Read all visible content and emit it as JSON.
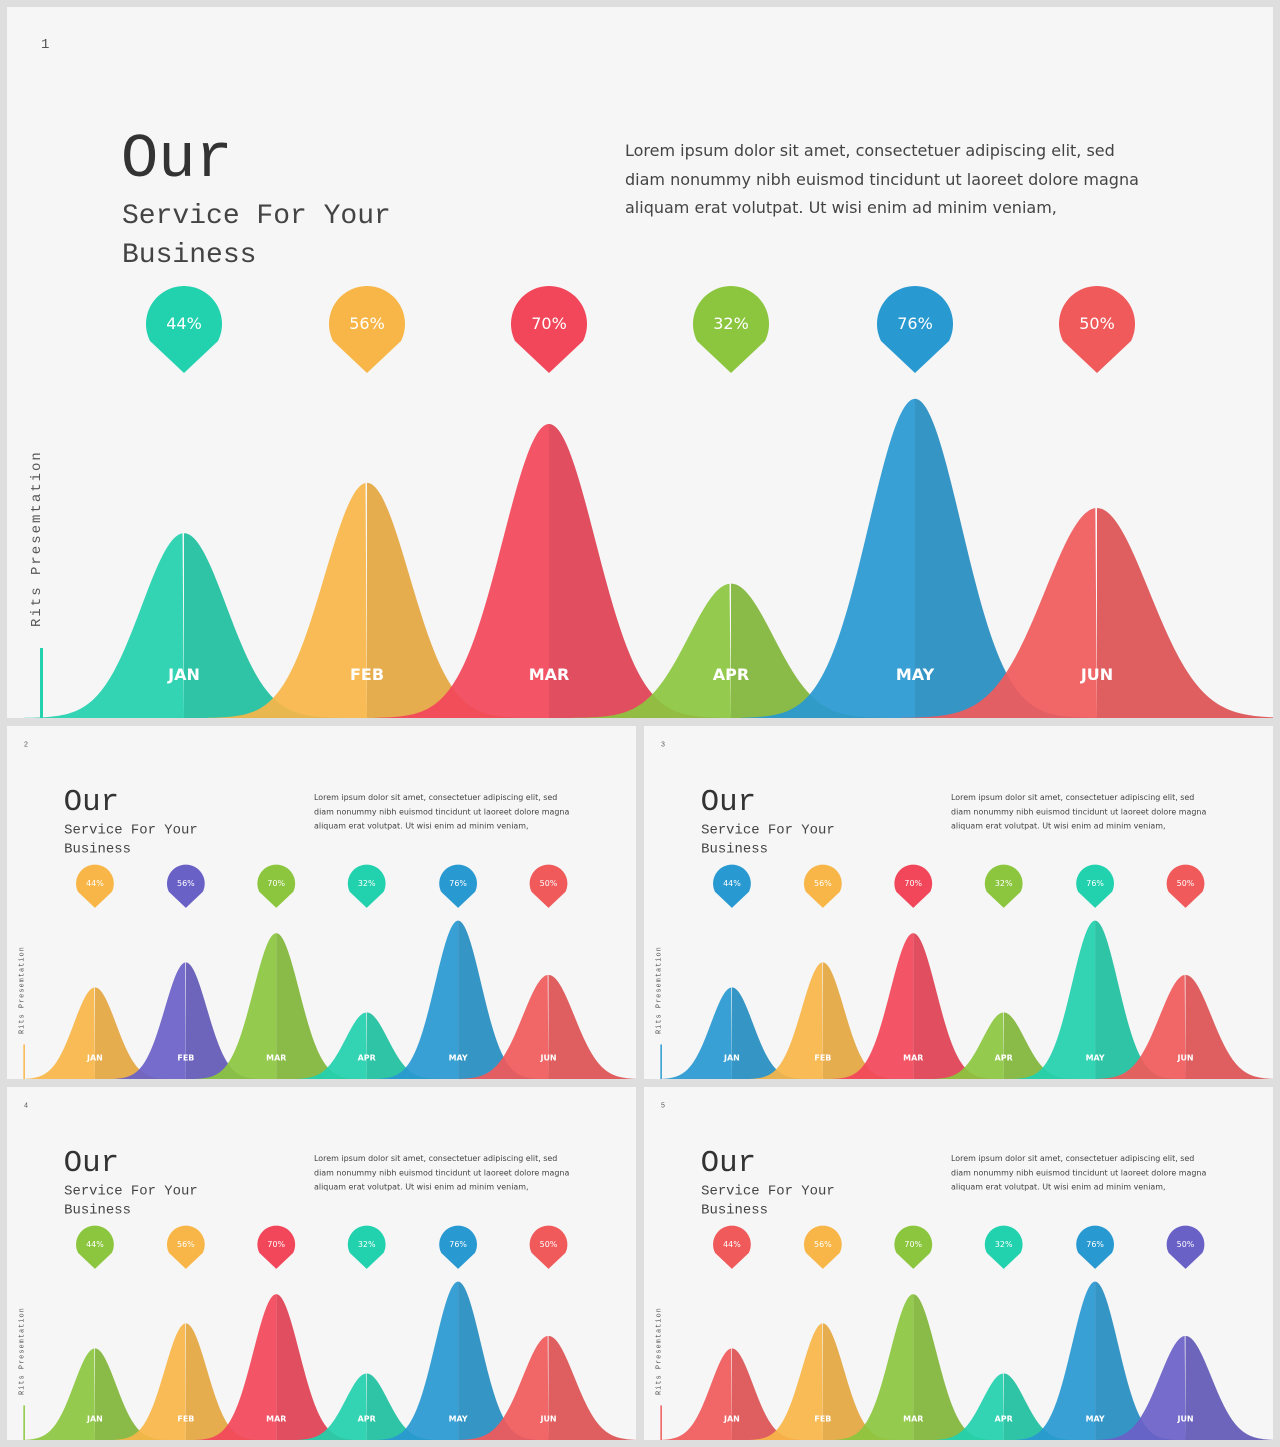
{
  "shared": {
    "title_main": "Our",
    "title_sub": "Service For Your Business",
    "body": "Lorem ipsum dolor sit amet, consectetuer adipiscing elit, sed diam nonummy nibh euismod tincidunt ut laoreet dolore magna aliquam erat volutpat. Ut wisi enim ad minim veniam,",
    "side_label": "Rits Presemtation"
  },
  "slides": [
    {
      "number": "1",
      "accent": "#22d1ad",
      "colors": [
        "#22d1ad",
        "#f8b648",
        "#f2475a",
        "#8cc63f",
        "#2999d1",
        "#f05a5b"
      ]
    },
    {
      "number": "2",
      "accent": "#f8b648",
      "colors": [
        "#f8b648",
        "#6a61c7",
        "#8cc63f",
        "#22d1ad",
        "#2999d1",
        "#f05a5b"
      ]
    },
    {
      "number": "3",
      "accent": "#2999d1",
      "colors": [
        "#2999d1",
        "#f8b648",
        "#f2475a",
        "#8cc63f",
        "#22d1ad",
        "#f05a5b"
      ]
    },
    {
      "number": "4",
      "accent": "#8cc63f",
      "colors": [
        "#8cc63f",
        "#f8b648",
        "#f2475a",
        "#22d1ad",
        "#2999d1",
        "#f05a5b"
      ]
    },
    {
      "number": "5",
      "accent": "#f05a5b",
      "colors": [
        "#f05a5b",
        "#f8b648",
        "#8cc63f",
        "#22d1ad",
        "#2999d1",
        "#6a61c7"
      ]
    }
  ],
  "chart_data": {
    "type": "area",
    "categories": [
      "JAN",
      "FEB",
      "MAR",
      "APR",
      "MAY",
      "JUN"
    ],
    "labels": [
      "44%",
      "56%",
      "70%",
      "32%",
      "76%",
      "50%"
    ],
    "values": [
      44,
      56,
      70,
      32,
      76,
      50
    ]
  }
}
